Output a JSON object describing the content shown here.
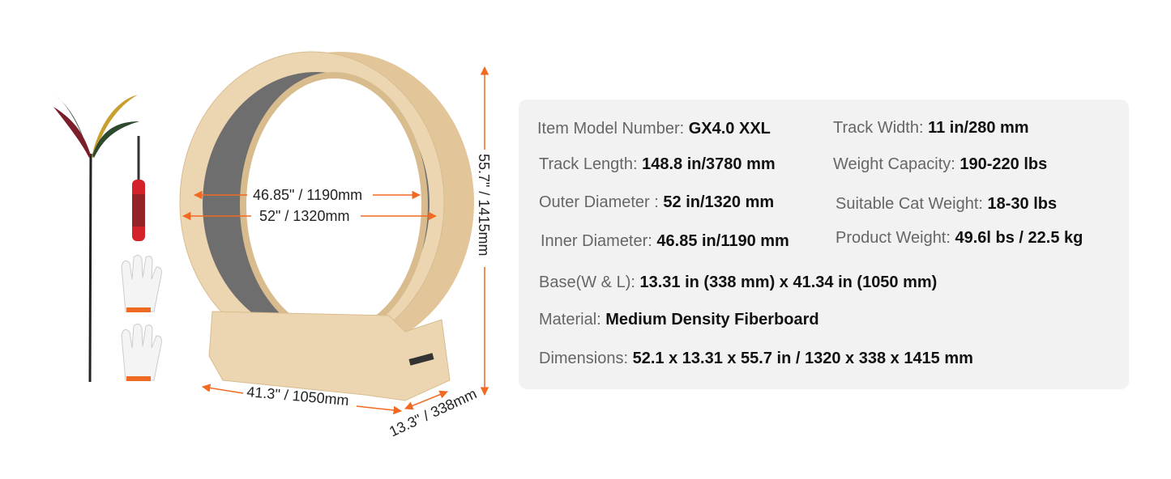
{
  "dimensions": {
    "inner_diameter": "46.85\" / 1190mm",
    "outer_diameter": "52\" / 1320mm",
    "height": "55.7\" / 1415mm",
    "base_length": "41.3\" / 1050mm",
    "base_width": "13.3\" / 338mm"
  },
  "colors": {
    "arrow": "#f26a21",
    "wood": "#e9d2ad",
    "felt": "#6b6b6b",
    "panel": "#f2f2f2"
  },
  "specs": [
    {
      "label": "Item Model Number: ",
      "value": "GX4.0 XXL"
    },
    {
      "label": "Track Width: ",
      "value": "11 in/280 mm"
    },
    {
      "label": "Track Length: ",
      "value": "148.8 in/3780 mm"
    },
    {
      "label": "Weight Capacity: ",
      "value": "190-220 lbs"
    },
    {
      "label": "Outer Diameter : ",
      "value": "52 in/1320 mm"
    },
    {
      "label": "Suitable Cat Weight: ",
      "value": "18-30 lbs"
    },
    {
      "label": "Inner Diameter: ",
      "value": "46.85 in/1190 mm"
    },
    {
      "label": "Product Weight: ",
      "value": "49.6l bs / 22.5 kg"
    },
    {
      "label": "Base(W & L): ",
      "value": "13.31 in (338 mm) x 41.34 in (1050 mm)"
    },
    {
      "label": "Material: ",
      "value": "Medium Density Fiberboard"
    },
    {
      "label": "Dimensions: ",
      "value": "52.1 x 13.31 x 55.7 in / 1320 x 338 x 1415 mm"
    }
  ]
}
